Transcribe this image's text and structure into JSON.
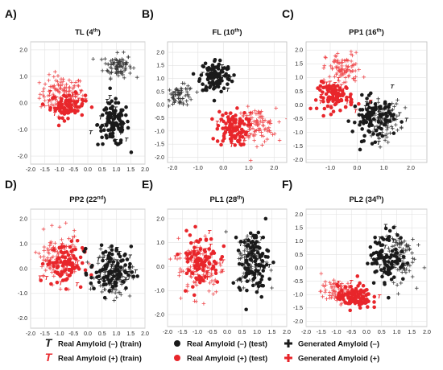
{
  "colors": {
    "negative": "#1a1a1a",
    "positive": "#e8262b",
    "generated_negative": "#3a3a3a",
    "generated_positive": "#ef4a4e",
    "grid": "#e2e2e2"
  },
  "legend": [
    {
      "marker": "T",
      "label": "Real Amyloid (–) (train)",
      "color": "#1a1a1a",
      "kind": "train"
    },
    {
      "marker": "T",
      "label": "Real Amyloid (+) (train)",
      "color": "#e8262b",
      "kind": "train"
    },
    {
      "marker": "circle",
      "label": "Real Amyloid (–) (test)",
      "color": "#1a1a1a",
      "kind": "test"
    },
    {
      "marker": "circle",
      "label": "Real Amyloid (+) (test)",
      "color": "#e8262b",
      "kind": "test"
    },
    {
      "marker": "plus",
      "label": "Generated Amyloid (–)",
      "color": "#1a1a1a",
      "kind": "gen"
    },
    {
      "marker": "plus",
      "label": "Generated Amyloid (+)",
      "color": "#e8262b",
      "kind": "gen"
    }
  ],
  "chart_data": [
    {
      "type": "scatter",
      "panel": "A)",
      "title": "TL",
      "title_suffix": " (4",
      "title_sup": "th",
      "title_close": ")",
      "xlim": [
        -2.0,
        2.0
      ],
      "ylim": [
        -2.3,
        2.3
      ],
      "xticks": [
        "-2.0",
        "-1.5",
        "-1.0",
        "-0.5",
        "0.0",
        "0.5",
        "1.0",
        "1.5",
        "2.0"
      ],
      "yticks": [
        "2.0",
        "1.0",
        "0.0",
        "-1.0",
        "-2.0"
      ],
      "clusters": [
        {
          "class": "positive",
          "kind": "gen",
          "cx": -0.9,
          "cy": 0.35,
          "rx": 0.7,
          "ry": 0.6,
          "n": 120
        },
        {
          "class": "positive",
          "kind": "test",
          "cx": -0.7,
          "cy": -0.1,
          "rx": 0.55,
          "ry": 0.4,
          "n": 80
        },
        {
          "class": "positive",
          "kind": "train",
          "cx": -0.8,
          "cy": 0.0,
          "rx": 0.7,
          "ry": 0.5,
          "n": 14
        },
        {
          "class": "negative",
          "kind": "gen",
          "cx": 1.05,
          "cy": 1.4,
          "rx": 0.45,
          "ry": 0.4,
          "n": 90
        },
        {
          "class": "negative",
          "kind": "test",
          "cx": 0.9,
          "cy": -0.8,
          "rx": 0.5,
          "ry": 0.75,
          "n": 110
        },
        {
          "class": "negative",
          "kind": "train",
          "cx": 0.9,
          "cy": -0.7,
          "rx": 0.55,
          "ry": 0.8,
          "n": 14
        }
      ]
    },
    {
      "type": "scatter",
      "panel": "B)",
      "title": "FL",
      "title_suffix": " (10",
      "title_sup": "th",
      "title_close": ")",
      "xlim": [
        -2.2,
        2.5
      ],
      "ylim": [
        -2.2,
        2.4
      ],
      "xticks": [
        "-2.0",
        "-1.0",
        "0.0",
        "1.0",
        "2.0"
      ],
      "yticks": [
        "2.0",
        "1.5",
        "1.0",
        "0.5",
        "0.0",
        "-0.5",
        "-1.0",
        "-1.5",
        "-2.0"
      ],
      "clusters": [
        {
          "class": "negative",
          "kind": "gen",
          "cx": -1.7,
          "cy": 0.35,
          "rx": 0.5,
          "ry": 0.35,
          "n": 70
        },
        {
          "class": "negative",
          "kind": "test",
          "cx": -0.3,
          "cy": 1.1,
          "rx": 0.55,
          "ry": 0.6,
          "n": 110
        },
        {
          "class": "negative",
          "kind": "train",
          "cx": -0.3,
          "cy": 1.0,
          "rx": 0.6,
          "ry": 0.6,
          "n": 10
        },
        {
          "class": "positive",
          "kind": "gen",
          "cx": 1.3,
          "cy": -0.8,
          "rx": 0.7,
          "ry": 0.6,
          "n": 100
        },
        {
          "class": "positive",
          "kind": "test",
          "cx": 0.35,
          "cy": -0.9,
          "rx": 0.55,
          "ry": 0.6,
          "n": 100
        },
        {
          "class": "positive",
          "kind": "train",
          "cx": 0.5,
          "cy": -0.8,
          "rx": 0.7,
          "ry": 0.6,
          "n": 12
        }
      ]
    },
    {
      "type": "scatter",
      "panel": "C)",
      "title": "PP1",
      "title_suffix": " (16",
      "title_sup": "th",
      "title_close": ")",
      "xlim": [
        -1.9,
        2.6
      ],
      "ylim": [
        -2.1,
        2.3
      ],
      "xticks": [
        "-1.0",
        "0.0",
        "1.0",
        "2.0"
      ],
      "yticks": [
        "2.0",
        "1.5",
        "1.0",
        "0.5",
        "0.0",
        "-0.5",
        "-1.0",
        "-1.5",
        "-2.0"
      ],
      "clusters": [
        {
          "class": "positive",
          "kind": "gen",
          "cx": -0.5,
          "cy": 1.3,
          "rx": 0.6,
          "ry": 0.55,
          "n": 90
        },
        {
          "class": "positive",
          "kind": "test",
          "cx": -0.8,
          "cy": 0.3,
          "rx": 0.6,
          "ry": 0.45,
          "n": 90
        },
        {
          "class": "positive",
          "kind": "train",
          "cx": -0.7,
          "cy": 0.4,
          "rx": 0.8,
          "ry": 0.7,
          "n": 14
        },
        {
          "class": "negative",
          "kind": "gen",
          "cx": 1.0,
          "cy": -0.5,
          "rx": 0.55,
          "ry": 0.6,
          "n": 90
        },
        {
          "class": "negative",
          "kind": "test",
          "cx": 0.6,
          "cy": -0.5,
          "rx": 0.7,
          "ry": 0.7,
          "n": 100
        },
        {
          "class": "negative",
          "kind": "train",
          "cx": 0.8,
          "cy": -0.4,
          "rx": 0.8,
          "ry": 0.75,
          "n": 14
        }
      ]
    },
    {
      "type": "scatter",
      "panel": "D)",
      "title": "PP2",
      "title_suffix": " (22",
      "title_sup": "nd",
      "title_close": ")",
      "xlim": [
        -2.0,
        2.0
      ],
      "ylim": [
        -2.4,
        2.4
      ],
      "xticks": [
        "-2.0",
        "-1.5",
        "-1.0",
        "-0.5",
        "0.0",
        "0.5",
        "1.0",
        "1.5",
        "2.0"
      ],
      "yticks": [
        "2.0",
        "1.0",
        "0.0",
        "-1.0",
        "-2.0"
      ],
      "clusters": [
        {
          "class": "positive",
          "kind": "gen",
          "cx": -1.1,
          "cy": 0.4,
          "rx": 0.7,
          "ry": 0.9,
          "n": 110
        },
        {
          "class": "positive",
          "kind": "test",
          "cx": -0.8,
          "cy": 0.2,
          "rx": 0.6,
          "ry": 0.8,
          "n": 90
        },
        {
          "class": "positive",
          "kind": "train",
          "cx": -0.9,
          "cy": 0.3,
          "rx": 0.7,
          "ry": 0.9,
          "n": 14
        },
        {
          "class": "negative",
          "kind": "gen",
          "cx": 0.9,
          "cy": -0.3,
          "rx": 0.55,
          "ry": 0.8,
          "n": 100
        },
        {
          "class": "negative",
          "kind": "test",
          "cx": 0.8,
          "cy": -0.1,
          "rx": 0.65,
          "ry": 0.9,
          "n": 100
        },
        {
          "class": "negative",
          "kind": "train",
          "cx": 1.0,
          "cy": 0.0,
          "rx": 0.7,
          "ry": 0.9,
          "n": 14
        }
      ]
    },
    {
      "type": "scatter",
      "panel": "E)",
      "title": "PL1",
      "title_suffix": " (28",
      "title_sup": "th",
      "title_close": ")",
      "xlim": [
        -2.0,
        2.0
      ],
      "ylim": [
        -2.5,
        2.4
      ],
      "xticks": [
        "-2.0",
        "-1.5",
        "-1.0",
        "-0.5",
        "0.0",
        "0.5",
        "1.0",
        "1.5",
        "2.0"
      ],
      "yticks": [
        "2.0",
        "1.0",
        "0.0",
        "-1.0",
        "-2.0"
      ],
      "clusters": [
        {
          "class": "positive",
          "kind": "gen",
          "cx": -0.9,
          "cy": 0.0,
          "rx": 0.7,
          "ry": 1.1,
          "n": 110
        },
        {
          "class": "positive",
          "kind": "test",
          "cx": -0.9,
          "cy": 0.3,
          "rx": 0.6,
          "ry": 1.0,
          "n": 90
        },
        {
          "class": "positive",
          "kind": "train",
          "cx": -0.8,
          "cy": 0.2,
          "rx": 0.7,
          "ry": 1.1,
          "n": 12
        },
        {
          "class": "negative",
          "kind": "gen",
          "cx": 0.8,
          "cy": 0.3,
          "rx": 0.45,
          "ry": 1.0,
          "n": 90
        },
        {
          "class": "negative",
          "kind": "test",
          "cx": 0.9,
          "cy": 0.2,
          "rx": 0.45,
          "ry": 1.2,
          "n": 100
        },
        {
          "class": "negative",
          "kind": "train",
          "cx": 0.9,
          "cy": 0.3,
          "rx": 0.5,
          "ry": 1.2,
          "n": 14
        }
      ]
    },
    {
      "type": "scatter",
      "panel": "F)",
      "title": "PL2",
      "title_suffix": " (34",
      "title_sup": "th",
      "title_close": ")",
      "xlim": [
        -2.0,
        2.0
      ],
      "ylim": [
        -2.2,
        2.2
      ],
      "xticks": [
        "-2.0",
        "-1.5",
        "-1.0",
        "-0.5",
        "0.0",
        "0.5",
        "1.0",
        "1.5",
        "2.0"
      ],
      "yticks": [
        "2.0",
        "1.5",
        "1.0",
        "0.5",
        "0.0",
        "-0.5",
        "-1.0",
        "-1.5",
        "-2.0"
      ],
      "clusters": [
        {
          "class": "positive",
          "kind": "gen",
          "cx": -0.9,
          "cy": -0.9,
          "rx": 0.55,
          "ry": 0.35,
          "n": 100
        },
        {
          "class": "positive",
          "kind": "test",
          "cx": -0.4,
          "cy": -1.1,
          "rx": 0.5,
          "ry": 0.4,
          "n": 100
        },
        {
          "class": "positive",
          "kind": "train",
          "cx": -0.5,
          "cy": -1.0,
          "rx": 0.65,
          "ry": 0.45,
          "n": 12
        },
        {
          "class": "negative",
          "kind": "gen",
          "cx": 1.1,
          "cy": 0.5,
          "rx": 0.45,
          "ry": 0.9,
          "n": 90
        },
        {
          "class": "negative",
          "kind": "test",
          "cx": 0.7,
          "cy": 0.4,
          "rx": 0.55,
          "ry": 0.9,
          "n": 100
        },
        {
          "class": "negative",
          "kind": "train",
          "cx": 0.8,
          "cy": 0.5,
          "rx": 0.6,
          "ry": 0.9,
          "n": 14
        }
      ]
    }
  ]
}
